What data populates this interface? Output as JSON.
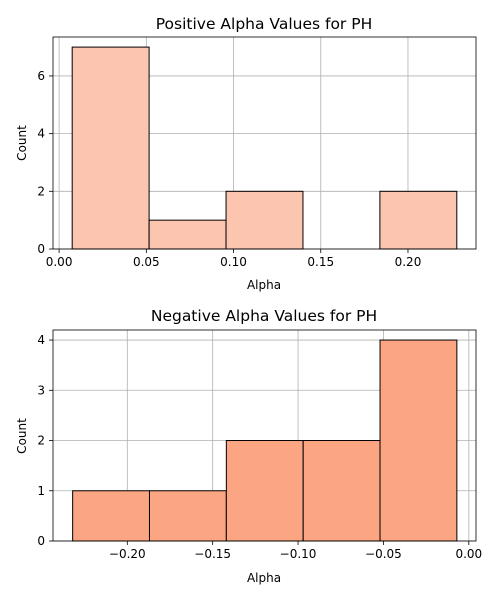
{
  "chart_data": [
    {
      "type": "bar",
      "title": "Positive Alpha Values for PH",
      "xlabel": "Alpha",
      "ylabel": "Count",
      "bins": [
        {
          "x0": 0.0075,
          "x1": 0.0516,
          "count": 7
        },
        {
          "x0": 0.0516,
          "x1": 0.0957,
          "count": 1
        },
        {
          "x0": 0.0957,
          "x1": 0.1398,
          "count": 2
        },
        {
          "x0": 0.1398,
          "x1": 0.1839,
          "count": 0
        },
        {
          "x0": 0.1839,
          "x1": 0.228,
          "count": 2
        }
      ],
      "xlim": [
        -0.0035,
        0.239
      ],
      "ylim": [
        0,
        7.35
      ],
      "xticks": [
        {
          "value": 0.0,
          "label": "0.00"
        },
        {
          "value": 0.05,
          "label": "0.05"
        },
        {
          "value": 0.1,
          "label": "0.10"
        },
        {
          "value": 0.15,
          "label": "0.15"
        },
        {
          "value": 0.2,
          "label": "0.20"
        }
      ],
      "yticks": [
        {
          "value": 0,
          "label": "0"
        },
        {
          "value": 2,
          "label": "2"
        },
        {
          "value": 4,
          "label": "4"
        },
        {
          "value": 6,
          "label": "6"
        }
      ],
      "grid": true,
      "bar_color": "#fcc5af",
      "edge_color": "#000000"
    },
    {
      "type": "bar",
      "title": "Negative Alpha Values for PH",
      "xlabel": "Alpha",
      "ylabel": "Count",
      "bins": [
        {
          "x0": -0.232,
          "x1": -0.187,
          "count": 1
        },
        {
          "x0": -0.187,
          "x1": -0.142,
          "count": 1
        },
        {
          "x0": -0.142,
          "x1": -0.097,
          "count": 2
        },
        {
          "x0": -0.097,
          "x1": -0.052,
          "count": 2
        },
        {
          "x0": -0.052,
          "x1": -0.007,
          "count": 4
        }
      ],
      "xlim": [
        -0.2435,
        0.0042
      ],
      "ylim": [
        0,
        4.2
      ],
      "xticks": [
        {
          "value": -0.2,
          "label": "−0.20"
        },
        {
          "value": -0.15,
          "label": "−0.15"
        },
        {
          "value": -0.1,
          "label": "−0.10"
        },
        {
          "value": -0.05,
          "label": "−0.05"
        },
        {
          "value": 0.0,
          "label": "0.00"
        }
      ],
      "yticks": [
        {
          "value": 0,
          "label": "0"
        },
        {
          "value": 1,
          "label": "1"
        },
        {
          "value": 2,
          "label": "2"
        },
        {
          "value": 3,
          "label": "3"
        },
        {
          "value": 4,
          "label": "4"
        }
      ],
      "grid": true,
      "bar_color": "#fca583",
      "edge_color": "#000000"
    }
  ]
}
